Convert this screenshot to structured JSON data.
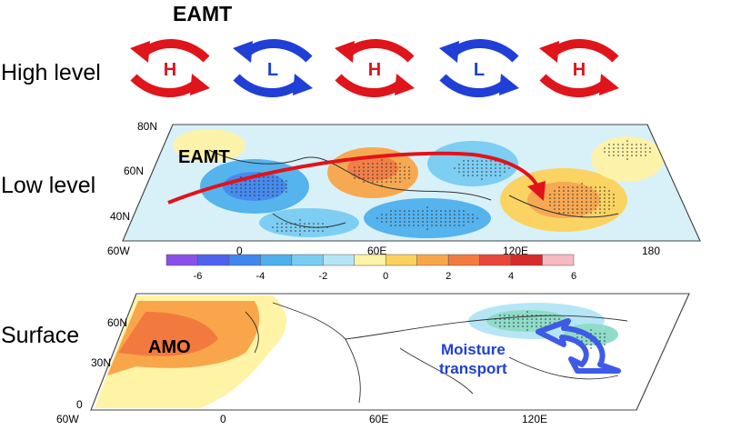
{
  "title": "EAMT",
  "rows": {
    "high": "High level",
    "low": "Low level",
    "surface": "Surface"
  },
  "high_level_centers": [
    {
      "letter": "H",
      "color": "#e0141b"
    },
    {
      "letter": "L",
      "color": "#1f3fd6"
    },
    {
      "letter": "H",
      "color": "#e0141b"
    },
    {
      "letter": "L",
      "color": "#1f3fd6"
    },
    {
      "letter": "H",
      "color": "#e0141b"
    }
  ],
  "low_level": {
    "label": "EAMT",
    "lat_ticks": [
      "80N",
      "60N",
      "40N"
    ],
    "lon_ticks": [
      "60W",
      "0",
      "60E",
      "120E",
      "180"
    ],
    "colorbar_ticks": [
      "-6",
      "-4",
      "-2",
      "0",
      "2",
      "4",
      "6"
    ],
    "colorbar_colors": [
      "#8a4fe8",
      "#4d63f0",
      "#3f86ee",
      "#4fb0ee",
      "#79cdf2",
      "#b6e6f6",
      "#fff3a6",
      "#fcd25c",
      "#f9a64a",
      "#f37a3e",
      "#e9463a",
      "#d92a2a",
      "#f7b9c2"
    ]
  },
  "surface": {
    "label": "AMO",
    "annotation_line1": "Moisture",
    "annotation_line2": "transport",
    "lat_ticks": [
      "60N",
      "30N",
      "0"
    ],
    "lon_ticks": [
      "60W",
      "0",
      "60E",
      "120E"
    ]
  },
  "colors": {
    "warm": "#e0141b",
    "cool": "#1f3fd6",
    "arrow": "#e3121b",
    "moisture_arrow": "#3f5ae6"
  }
}
